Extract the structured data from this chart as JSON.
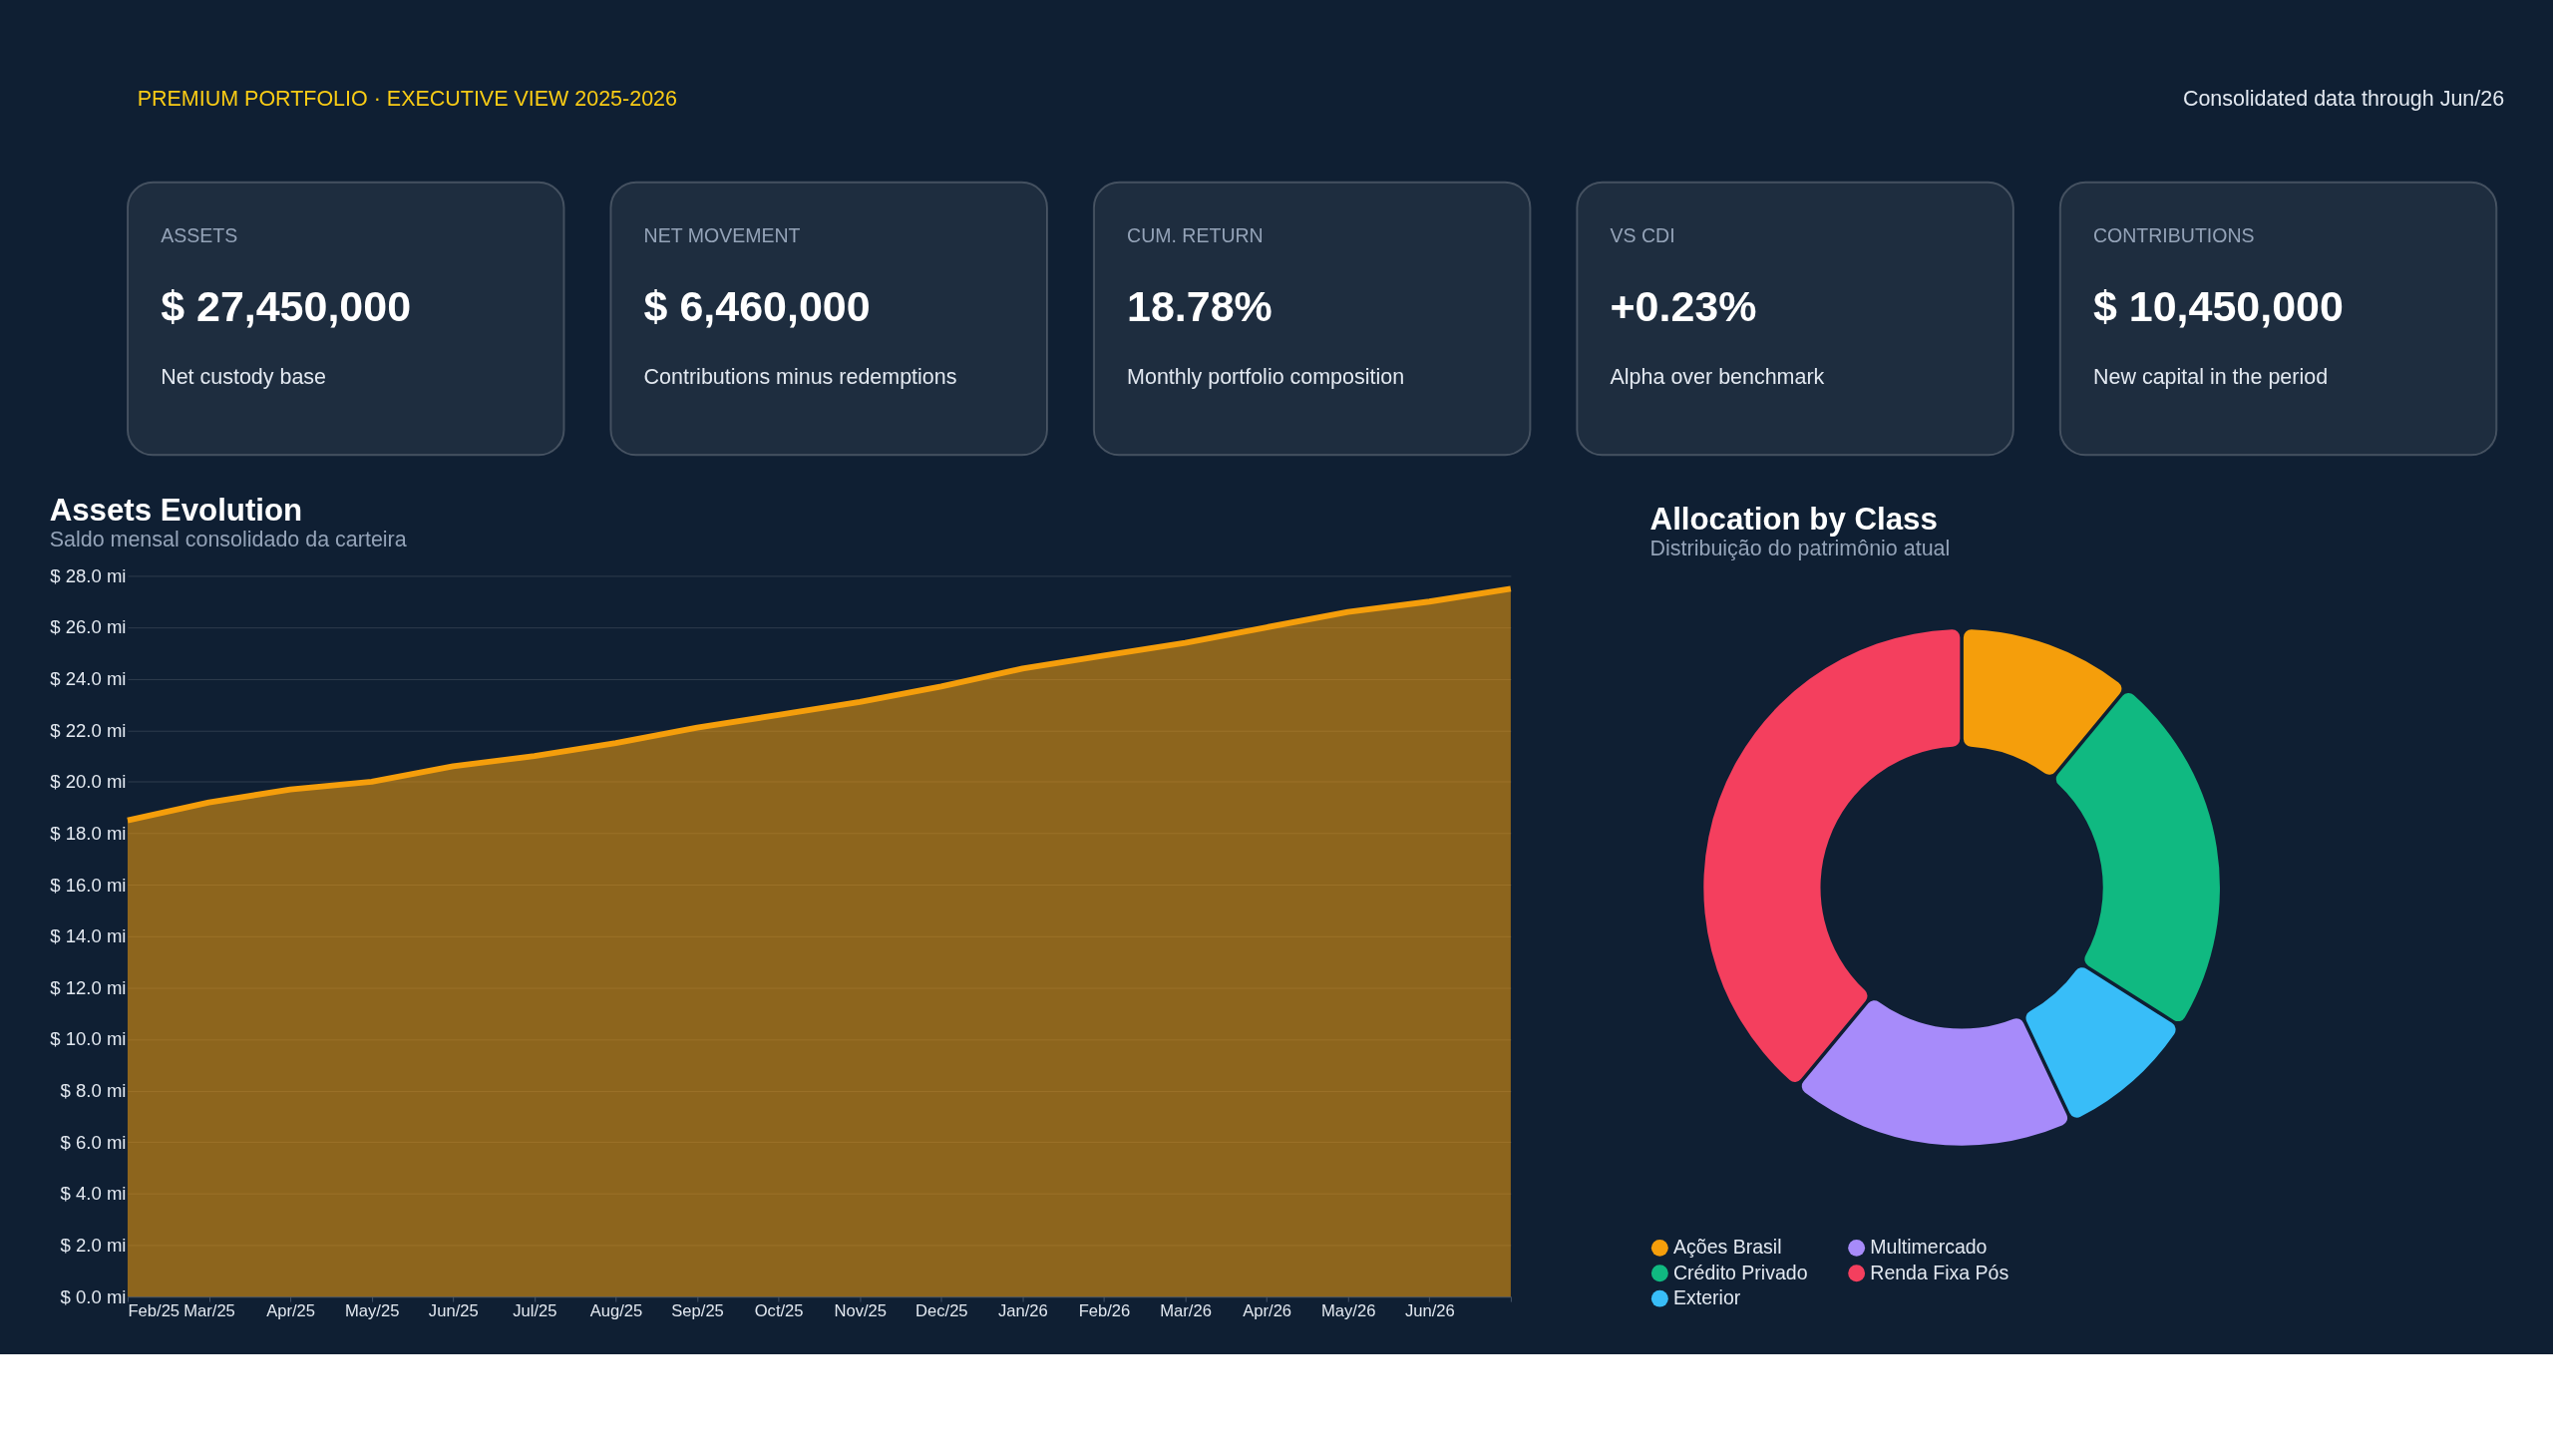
{
  "chart_data": [
    {
      "type": "other",
      "title": "PREMIUM PORTFOLIO · EXECUTIVE VIEW 2025-2026",
      "annotations": [
        "Consolidated data through Jun/26"
      ]
    },
    {
      "type": "other",
      "title": "ASSETS",
      "annotations": [
        "$ 27,450,000",
        "Net custody base"
      ]
    },
    {
      "type": "other",
      "title": "NET MOVEMENT",
      "annotations": [
        "$ 6,460,000",
        "Contributions minus redemptions"
      ]
    },
    {
      "type": "other",
      "title": "CUM. RETURN",
      "annotations": [
        "18.78%",
        "Monthly portfolio composition"
      ]
    },
    {
      "type": "other",
      "title": "VS CDI",
      "annotations": [
        "+0.23%",
        "Alpha over benchmark"
      ]
    },
    {
      "type": "other",
      "title": "CONTRIBUTIONS",
      "annotations": [
        "$ 10,450,000",
        "New capital in the period"
      ]
    },
    {
      "type": "area",
      "title": "Assets Evolution",
      "subtitle": "Saldo mensal consolidado da carteira",
      "categories": [
        "Feb/25",
        "Mar/25",
        "Apr/25",
        "May/25",
        "Jun/25",
        "Jul/25",
        "Aug/25",
        "Sep/25",
        "Oct/25",
        "Nov/25",
        "Dec/25",
        "Jan/26",
        "Feb/26",
        "Mar/26",
        "Apr/26",
        "May/26",
        "Jun/26",
        null
      ],
      "series": [
        {
          "color": "#f59e0b",
          "values": [
            18.5,
            19.2,
            19.7,
            20.0,
            20.6,
            21.0,
            21.5,
            22.1,
            22.6,
            23.1,
            23.7,
            24.4,
            24.9,
            25.4,
            26.0,
            26.6,
            27.0,
            27.5
          ]
        }
      ],
      "ylim": [
        0,
        28
      ],
      "yticks": [
        {
          "value": 0,
          "label": "$ 0.0 mi"
        },
        {
          "value": 2,
          "label": "$ 2.0 mi"
        },
        {
          "value": 4,
          "label": "$ 4.0 mi"
        },
        {
          "value": 6,
          "label": "$ 6.0 mi"
        },
        {
          "value": 8,
          "label": "$ 8.0 mi"
        },
        {
          "value": 10,
          "label": "$ 10.0 mi"
        },
        {
          "value": 12,
          "label": "$ 12.0 mi"
        },
        {
          "value": 14,
          "label": "$ 14.0 mi"
        },
        {
          "value": 16,
          "label": "$ 16.0 mi"
        },
        {
          "value": 18,
          "label": "$ 18.0 mi"
        },
        {
          "value": 20,
          "label": "$ 20.0 mi"
        },
        {
          "value": 22,
          "label": "$ 22.0 mi"
        },
        {
          "value": 24,
          "label": "$ 24.0 mi"
        },
        {
          "value": 26,
          "label": "$ 26.0 mi"
        },
        {
          "value": 28,
          "label": "$ 28.0 mi"
        }
      ],
      "grid": "y"
    },
    {
      "type": "donut",
      "title": "Allocation by Class",
      "subtitle": "Distribuição do patrimônio atual",
      "categories": [
        "Ações Brasil",
        "Crédito Privado",
        "Exterior",
        "Multimercado",
        "Renda Fixa Pós"
      ],
      "values": [
        11,
        23,
        9,
        18,
        39
      ],
      "colors": [
        "#f59e0b",
        "#10b981",
        "#38bdf8",
        "#a78bfa",
        "#f43f5e"
      ],
      "legend": "bottom left"
    }
  ]
}
